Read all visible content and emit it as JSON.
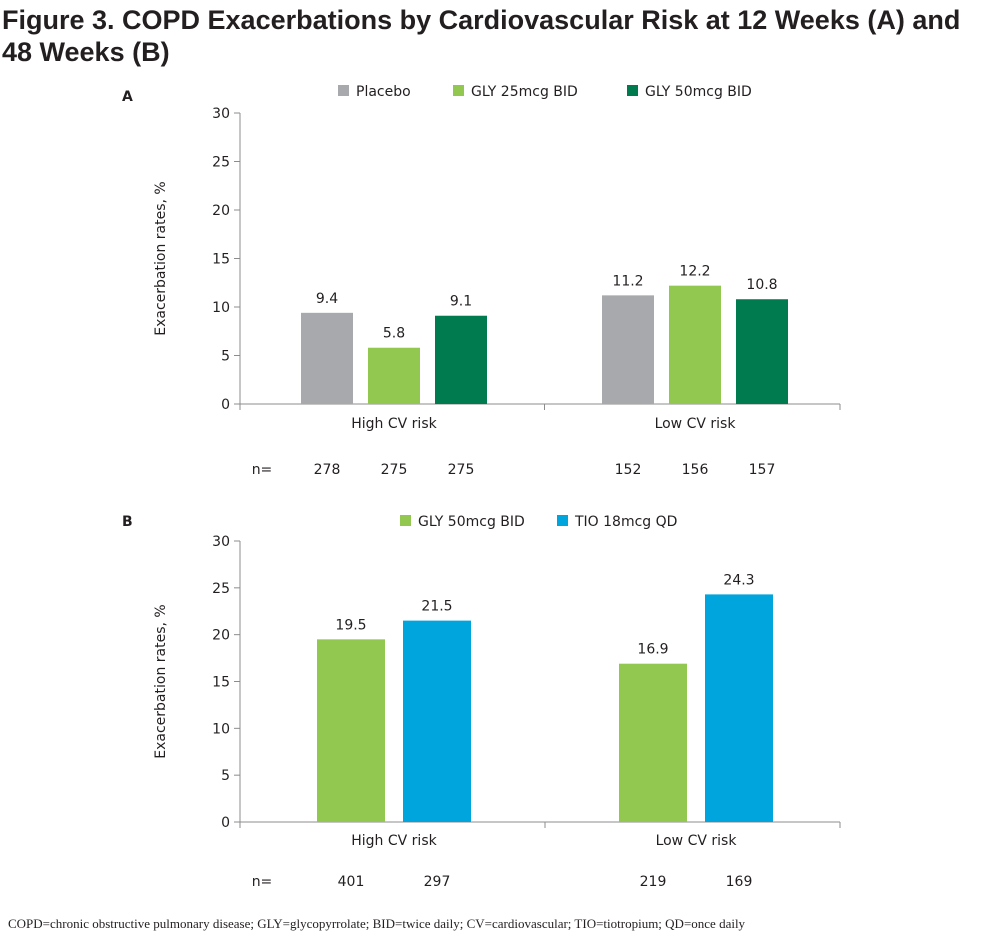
{
  "figure": {
    "title": "Figure 3. COPD Exacerbations by Cardiovascular Risk at 12 Weeks (A) and 48 Weeks (B)",
    "footnote": "COPD=chronic obstructive pulmonary disease; GLY=glycopyrrolate; BID=twice daily; CV=cardiovascular; TIO=tiotropium; QD=once daily"
  },
  "chart_data": [
    {
      "type": "bar",
      "panel_label": "A",
      "ylabel": "Exacerbation rates, %",
      "ylim": [
        0,
        30
      ],
      "yticks": [
        0,
        5,
        10,
        15,
        20,
        25,
        30
      ],
      "categories": [
        "High CV risk",
        "Low CV risk"
      ],
      "n_prefix": "n=",
      "legend_position": "top",
      "series": [
        {
          "name": "Placebo",
          "color": "#a7a9ac",
          "values": [
            9.4,
            11.2
          ],
          "value_labels": [
            "9.4",
            "11.2"
          ],
          "n": [
            "278",
            "152"
          ]
        },
        {
          "name": "GLY 25mcg BID",
          "color": "#92c84f",
          "values": [
            5.8,
            12.2
          ],
          "value_labels": [
            "5.8",
            "12.2"
          ],
          "n": [
            "275",
            "156"
          ]
        },
        {
          "name": "GLY 50mcg BID",
          "color": "#007b4f",
          "values": [
            9.1,
            10.8
          ],
          "value_labels": [
            "9.1",
            "10.8"
          ],
          "n": [
            "275",
            "157"
          ]
        }
      ]
    },
    {
      "type": "bar",
      "panel_label": "B",
      "ylabel": "Exacerbation rates, %",
      "ylim": [
        0,
        30
      ],
      "yticks": [
        0,
        5,
        10,
        15,
        20,
        25,
        30
      ],
      "categories": [
        "High CV risk",
        "Low CV risk"
      ],
      "n_prefix": "n=",
      "legend_position": "top",
      "series": [
        {
          "name": "GLY 50mcg BID",
          "color": "#92c84f",
          "values": [
            19.5,
            16.9
          ],
          "value_labels": [
            "19.5",
            "16.9"
          ],
          "n": [
            "401",
            "219"
          ]
        },
        {
          "name": "TIO 18mcg QD",
          "color": "#00a5dd",
          "values": [
            21.5,
            24.3
          ],
          "value_labels": [
            "21.5",
            "24.3"
          ],
          "n": [
            "297",
            "169"
          ]
        }
      ]
    }
  ]
}
